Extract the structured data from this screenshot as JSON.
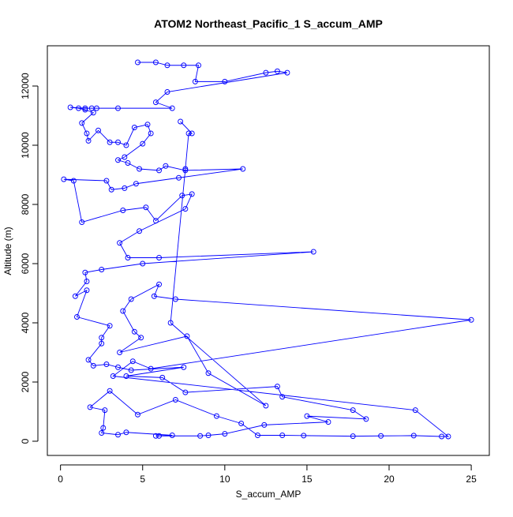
{
  "chart_data": {
    "type": "line",
    "title": "ATOM2 Northeast_Pacific_1 S_accum_AMP",
    "x_label": "S_accum_AMP",
    "y_label": "Altitude (m)",
    "color": "#0000ff",
    "markers": "open-circle",
    "xlim": [
      -0.8,
      26.1
    ],
    "xticks": [
      0,
      5,
      10,
      15,
      20,
      25
    ],
    "ylim": [
      -480,
      13360
    ],
    "yticks": [
      0,
      2000,
      4000,
      6000,
      8000,
      10000,
      12000
    ],
    "series": [
      {
        "name": "S_accum_AMP",
        "x": [
          4.7,
          5.8,
          6.5,
          7.5,
          8.4,
          8.2,
          10.0,
          12.5,
          13.2,
          13.8,
          6.5,
          5.8,
          6.8,
          3.5,
          2.2,
          1.9,
          1.5,
          0.6,
          1.1,
          1.5,
          2.0,
          1.3,
          1.6,
          1.7,
          2.3,
          3.0,
          3.5,
          4.0,
          4.5,
          5.3,
          5.5,
          5.0,
          3.9,
          3.5,
          4.1,
          4.8,
          6.0,
          6.4,
          7.6,
          11.1,
          7.2,
          4.6,
          3.9,
          3.1,
          2.8,
          0.2,
          0.8,
          1.3,
          3.8,
          5.2,
          5.8,
          7.4,
          8.0,
          7.6,
          4.8,
          3.6,
          4.1,
          6.0,
          15.4,
          5.0,
          2.5,
          1.5,
          1.6,
          0.9,
          1.6,
          1.0,
          3.0,
          2.5,
          2.5,
          1.7,
          2.0,
          2.8,
          3.5,
          4.3,
          7.5,
          4.0,
          6.2,
          7.6,
          13.2,
          13.5,
          17.8,
          18.6,
          15.0,
          16.3,
          12.4,
          10.0,
          9.0,
          8.5,
          6.0,
          5.8,
          6.8,
          4.0,
          3.5,
          2.5,
          2.6,
          2.7,
          1.8,
          3.0,
          4.7,
          7.0,
          9.5,
          11.0,
          12.0,
          13.5,
          14.8,
          17.8,
          19.5,
          21.5,
          23.2,
          23.6,
          21.6,
          3.2,
          4.4,
          5.5,
          25.0,
          7.0,
          5.7,
          6.0,
          4.3,
          3.8,
          4.5,
          4.9,
          3.6,
          7.7,
          9.0,
          12.5,
          6.7,
          7.6,
          7.8,
          8.0,
          7.3
        ],
        "values": [
          12800,
          12800,
          12700,
          12700,
          12700,
          12150,
          12150,
          12450,
          12500,
          12450,
          11800,
          11450,
          11250,
          11250,
          11250,
          11250,
          11250,
          11280,
          11250,
          11200,
          11100,
          10750,
          10400,
          10150,
          10500,
          10100,
          10100,
          10000,
          10600,
          10700,
          10400,
          10050,
          9600,
          9500,
          9400,
          9200,
          9150,
          9300,
          9150,
          9200,
          8900,
          8700,
          8550,
          8500,
          8800,
          8850,
          8800,
          7400,
          7800,
          7900,
          7450,
          8300,
          8350,
          7850,
          7100,
          6700,
          6200,
          6200,
          6400,
          6000,
          5800,
          5700,
          5400,
          4900,
          5100,
          4200,
          3900,
          3500,
          3300,
          2750,
          2550,
          2600,
          2500,
          2400,
          2500,
          2200,
          2150,
          1650,
          1850,
          1500,
          1050,
          750,
          850,
          650,
          550,
          250,
          200,
          180,
          180,
          180,
          200,
          300,
          220,
          280,
          450,
          1050,
          1150,
          1700,
          900,
          1400,
          850,
          600,
          200,
          200,
          190,
          170,
          180,
          190,
          160,
          160,
          1050,
          2200,
          2700,
          2450,
          4100,
          4800,
          4900,
          5300,
          4800,
          4400,
          3700,
          3500,
          3000,
          3550,
          2300,
          1200,
          4000,
          9200,
          10400,
          10400,
          10800
        ]
      }
    ]
  }
}
